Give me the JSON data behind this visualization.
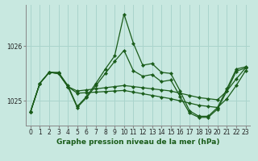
{
  "title": "Graphe pression niveau de la mer (hPa)",
  "background_color": "#c8e8e0",
  "plot_bg_color": "#c8e8e0",
  "grid_color": "#aad4cc",
  "line_color": "#1a5c1a",
  "marker_color": "#1a5c1a",
  "border_color": "#888888",
  "ylim": [
    1024.55,
    1026.75
  ],
  "yticks": [
    1025,
    1026
  ],
  "xlim": [
    -0.5,
    23.5
  ],
  "xticks": [
    0,
    1,
    2,
    3,
    4,
    5,
    6,
    7,
    8,
    9,
    10,
    11,
    12,
    13,
    14,
    15,
    16,
    17,
    18,
    19,
    20,
    21,
    22,
    23
  ],
  "tick_fontsize": 5.5,
  "title_fontsize": 6.5,
  "lines": [
    {
      "x": [
        0,
        1,
        2,
        3,
        4,
        5,
        6,
        7,
        8,
        9,
        10,
        11,
        12,
        13,
        14,
        15,
        16,
        17,
        18,
        19,
        20,
        21,
        22,
        23
      ],
      "y": [
        1024.8,
        1025.32,
        1025.52,
        1025.52,
        1025.28,
        1024.9,
        1025.08,
        1025.32,
        1025.58,
        1025.82,
        1026.58,
        1026.05,
        1025.65,
        1025.68,
        1025.52,
        1025.5,
        1025.18,
        1024.82,
        1024.72,
        1024.72,
        1024.88,
        1025.22,
        1025.58,
        1025.62
      ]
    },
    {
      "x": [
        0,
        1,
        2,
        3,
        4,
        5,
        6,
        7,
        8,
        9,
        10,
        11,
        12,
        13,
        14,
        15,
        16,
        17,
        18,
        19,
        20,
        21,
        22,
        23
      ],
      "y": [
        1024.8,
        1025.32,
        1025.52,
        1025.5,
        1025.26,
        1024.88,
        1025.06,
        1025.28,
        1025.5,
        1025.72,
        1025.92,
        1025.55,
        1025.45,
        1025.48,
        1025.35,
        1025.38,
        1025.08,
        1024.78,
        1024.7,
        1024.7,
        1024.85,
        1025.18,
        1025.54,
        1025.6
      ]
    },
    {
      "x": [
        0,
        1,
        2,
        3,
        4,
        5,
        6,
        7,
        8,
        9,
        10,
        11,
        12,
        13,
        14,
        15,
        16,
        17,
        18,
        19,
        20,
        21,
        22,
        23
      ],
      "y": [
        1024.8,
        1025.32,
        1025.52,
        1025.5,
        1025.26,
        1025.18,
        1025.2,
        1025.22,
        1025.24,
        1025.26,
        1025.28,
        1025.26,
        1025.24,
        1025.22,
        1025.2,
        1025.18,
        1025.14,
        1025.1,
        1025.06,
        1025.04,
        1025.02,
        1025.18,
        1025.4,
        1025.6
      ]
    },
    {
      "x": [
        0,
        1,
        2,
        3,
        4,
        5,
        6,
        7,
        8,
        9,
        10,
        11,
        12,
        13,
        14,
        15,
        16,
        17,
        18,
        19,
        20,
        21,
        22,
        23
      ],
      "y": [
        1024.8,
        1025.32,
        1025.52,
        1025.5,
        1025.26,
        1025.14,
        1025.15,
        1025.16,
        1025.17,
        1025.18,
        1025.19,
        1025.16,
        1025.13,
        1025.1,
        1025.07,
        1025.04,
        1025.0,
        1024.96,
        1024.92,
        1024.9,
        1024.88,
        1025.04,
        1025.28,
        1025.55
      ]
    }
  ]
}
